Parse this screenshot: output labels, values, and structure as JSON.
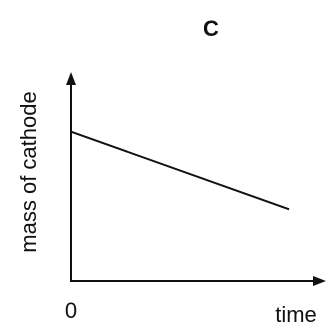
{
  "chart_data": {
    "type": "line",
    "title": "C",
    "xlabel": "time",
    "ylabel": "mass of cathode",
    "x_tick_labels": [
      "0"
    ],
    "series": [
      {
        "x": [
          0,
          1
        ],
        "y": [
          0.75,
          0.36
        ]
      }
    ],
    "xlim": [
      0,
      1.05
    ],
    "ylim": [
      0,
      1.05
    ],
    "grid": false,
    "axis_color": "#111111"
  }
}
